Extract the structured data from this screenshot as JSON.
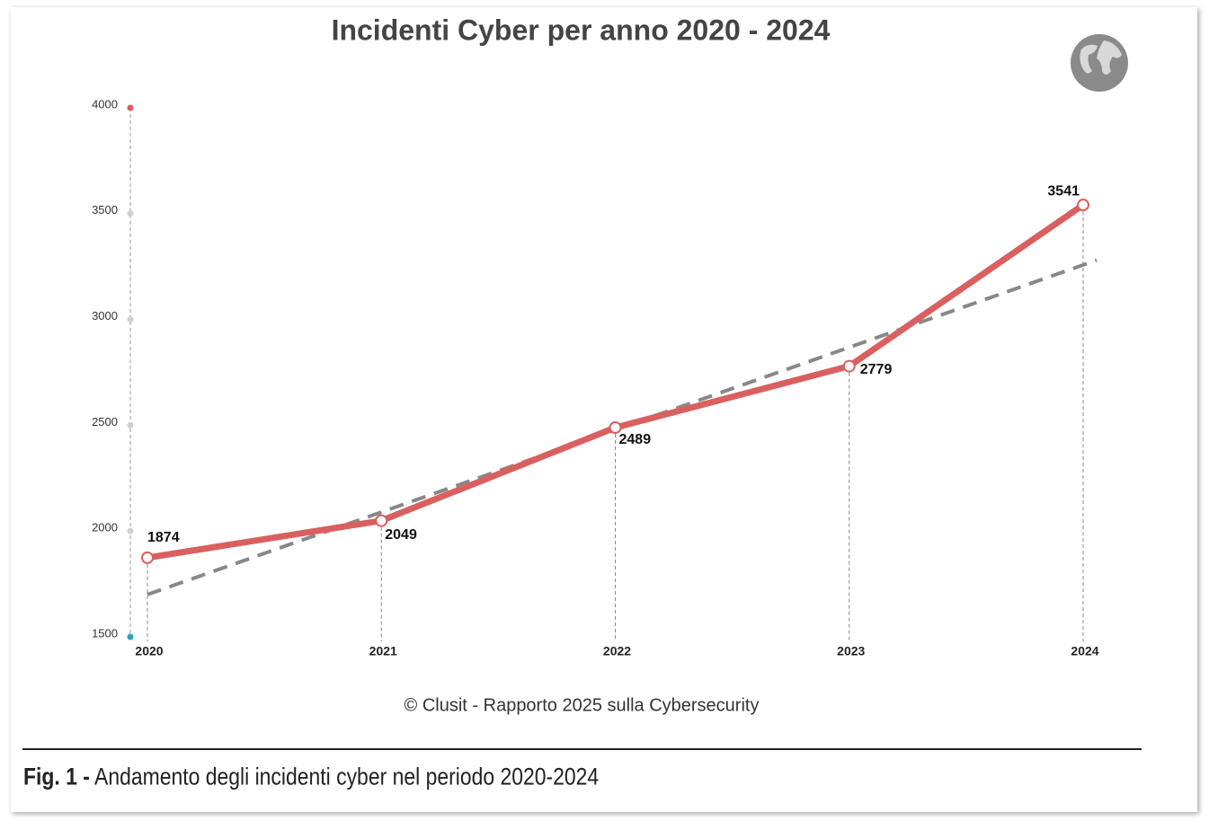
{
  "chart_data": {
    "type": "line",
    "title": "Incidenti Cyber per anno 2020 - 2024",
    "categories": [
      "2020",
      "2021",
      "2022",
      "2023",
      "2024"
    ],
    "series": [
      {
        "name": "Incidenti",
        "color": "#d9605f",
        "values": [
          1874,
          2049,
          2489,
          2779,
          3541
        ]
      }
    ],
    "trend": {
      "values": [
        1700,
        3280
      ],
      "color": "#888888"
    },
    "ylim": [
      1500,
      4000
    ],
    "yticks": [
      1500,
      2000,
      2500,
      3000,
      3500,
      4000
    ]
  },
  "source": "© Clusit - Rapporto 2025 sulla Cybersecurity",
  "caption": {
    "label": "Fig. 1 -",
    "text": "Andamento degli incidenti cyber nel periodo 2020-2024"
  }
}
